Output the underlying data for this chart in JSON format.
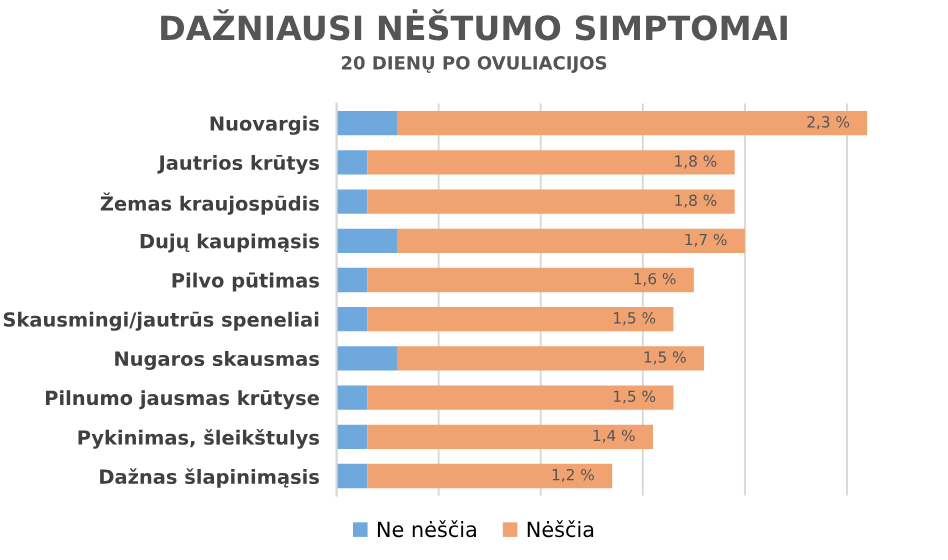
{
  "chart_data": {
    "type": "bar",
    "orientation": "horizontal",
    "stacked": true,
    "xlim": [
      0,
      2.6
    ],
    "xticks": [
      {
        "value": 0,
        "label": null
      },
      {
        "value": 0.5,
        "label": null
      },
      {
        "value": 1,
        "label": null
      },
      {
        "value": 1.5,
        "label": null
      },
      {
        "value": 2,
        "label": null
      },
      {
        "value": 2.5,
        "label": null
      }
    ],
    "tick_labels": "y",
    "title": "DAŽNIAUSI NĖŠTUMO SIMPTOMAI",
    "subtitle": "20 DIENŲ PO OVULIACIJOS",
    "categories": [
      "Nuovargis",
      "Jautrios krūtys",
      "Žemas kraujospūdis",
      "Dujų kaupimąsis",
      "Pilvo pūtimas",
      "Skausmingi/jautrūs speneliai",
      "Nugaros skausmas",
      "Pilnumo jausmas krūtyse",
      "Pykinimas, šleikštulys",
      "Dažnas šlapinimąsis"
    ],
    "series": [
      {
        "name": "Ne nėščia",
        "color": "#6fa8dc",
        "values": [
          0.3,
          0.15,
          0.15,
          0.3,
          0.15,
          0.15,
          0.3,
          0.15,
          0.15,
          0.15
        ]
      },
      {
        "name": "Nėščia",
        "color": "#f0a371",
        "values": [
          2.3,
          1.8,
          1.8,
          1.7,
          1.6,
          1.5,
          1.5,
          1.5,
          1.4,
          1.2
        ],
        "value_labels": [
          "2,3 %",
          "1,8 %",
          "1,8 %",
          "1,7 %",
          "1,6 %",
          "1,5 %",
          "1,5 %",
          "1,5 %",
          "1,4 %",
          "1,2 %"
        ]
      }
    ],
    "grid": "x",
    "legend": "bottom"
  }
}
